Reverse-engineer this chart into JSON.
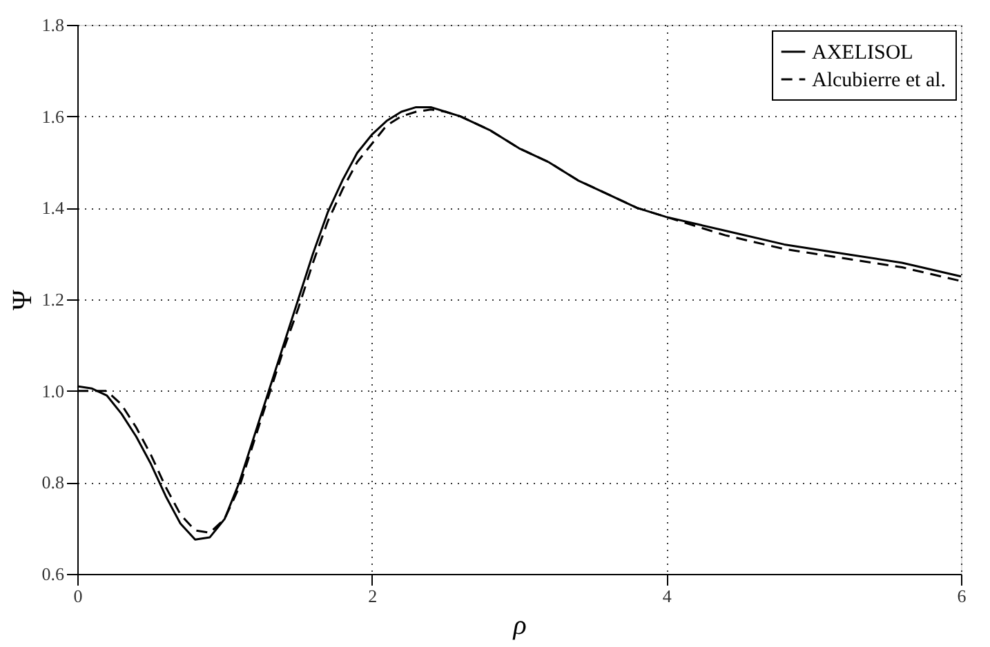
{
  "chart_data": {
    "type": "line",
    "xlabel": "ρ",
    "ylabel": "Ψ",
    "xlim": [
      0,
      6
    ],
    "xticks": [
      0,
      2,
      4,
      6
    ],
    "ylim": [
      0.6,
      1.8
    ],
    "yticks": [
      0.6,
      0.8,
      {
        "value": 1.0,
        "label": "1.0"
      },
      1.2,
      1.4,
      1.6,
      1.8
    ],
    "grid": true,
    "legend": "top right",
    "marker": "none",
    "series": [
      {
        "name": "AXELISOL",
        "color": "#000000",
        "line_style": "solid",
        "x": [
          0,
          0.1,
          0.2,
          0.3,
          0.4,
          0.5,
          0.6,
          0.7,
          0.8,
          0.9,
          1.0,
          1.1,
          1.2,
          1.3,
          1.4,
          1.5,
          1.6,
          1.7,
          1.8,
          1.9,
          2.0,
          2.1,
          2.2,
          2.3,
          2.4,
          2.5,
          2.6,
          2.8,
          3.0,
          3.2,
          3.4,
          3.6,
          3.8,
          4.0,
          4.4,
          4.8,
          5.2,
          5.6,
          6.0
        ],
        "values": [
          1.01,
          1.005,
          0.99,
          0.95,
          0.9,
          0.84,
          0.77,
          0.71,
          0.675,
          0.68,
          0.72,
          0.8,
          0.9,
          1.0,
          1.1,
          1.2,
          1.3,
          1.39,
          1.46,
          1.52,
          1.56,
          1.59,
          1.61,
          1.62,
          1.62,
          1.61,
          1.6,
          1.57,
          1.53,
          1.5,
          1.46,
          1.43,
          1.4,
          1.38,
          1.35,
          1.32,
          1.3,
          1.28,
          1.25
        ]
      },
      {
        "name": "Alcubierre et al.",
        "color": "#000000",
        "line_style": "dashed",
        "x": [
          0,
          0.1,
          0.2,
          0.3,
          0.4,
          0.5,
          0.6,
          0.7,
          0.8,
          0.9,
          1.0,
          1.1,
          1.2,
          1.3,
          1.4,
          1.5,
          1.6,
          1.7,
          1.8,
          1.9,
          2.0,
          2.1,
          2.2,
          2.3,
          2.4,
          2.5,
          2.6,
          2.8,
          3.0,
          3.2,
          3.4,
          3.6,
          3.8,
          4.0,
          4.4,
          4.8,
          5.2,
          5.6,
          6.0
        ],
        "values": [
          1.0,
          1.0,
          1.0,
          0.97,
          0.92,
          0.86,
          0.79,
          0.73,
          0.695,
          0.69,
          0.72,
          0.79,
          0.89,
          0.99,
          1.09,
          1.18,
          1.28,
          1.37,
          1.44,
          1.5,
          1.54,
          1.58,
          1.6,
          1.61,
          1.615,
          1.61,
          1.6,
          1.57,
          1.53,
          1.5,
          1.46,
          1.43,
          1.4,
          1.38,
          1.34,
          1.31,
          1.29,
          1.27,
          1.24
        ]
      }
    ]
  }
}
